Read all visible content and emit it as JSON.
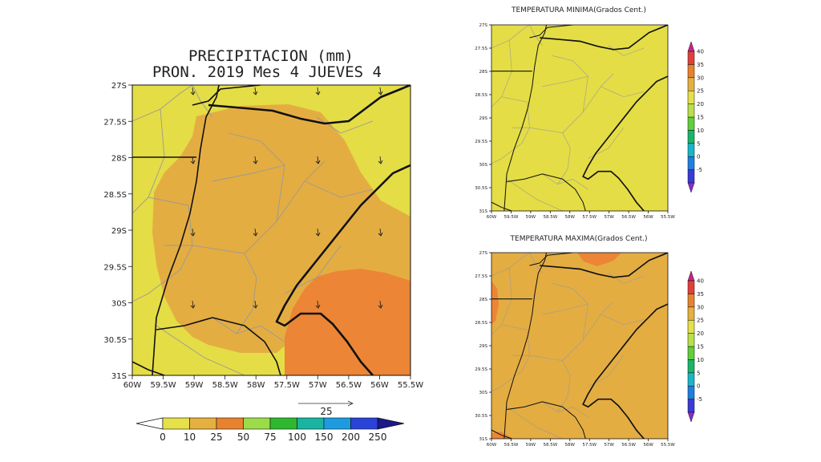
{
  "precip": {
    "title_line1": "PRECIPITACION (mm)",
    "title_line2": "PRON. 2019 Mes 4 JUEVES 4",
    "lat_ticks": [
      "27S",
      "27.5S",
      "28S",
      "28.5S",
      "29S",
      "29.5S",
      "30S",
      "30.5S",
      "31S"
    ],
    "lon_ticks": [
      "60W",
      "59.5W",
      "59W",
      "58.5W",
      "58W",
      "57.5W",
      "57W",
      "56.5W",
      "56W",
      "55.5W"
    ],
    "vector_ref_label": "25",
    "colorbar_labels": [
      "0",
      "10",
      "25",
      "50",
      "75",
      "100",
      "150",
      "200",
      "250"
    ],
    "colorbar_colors": [
      "#e6e04a",
      "#e6b040",
      "#e9822f",
      "#9ddc49",
      "#2fb82f",
      "#19b5a0",
      "#1e9be0",
      "#2a43d8"
    ],
    "fill_colors": {
      "low": "#e4dd45",
      "mid": "#e4ad42",
      "high": "#ec8535"
    }
  },
  "tmin": {
    "title": "TEMPERATURA MINIMA(Grados Cent.)",
    "lat_ticks": [
      "27S",
      "27.5S",
      "28S",
      "28.5S",
      "29S",
      "29.5S",
      "30S",
      "30.5S",
      "31S"
    ],
    "lon_ticks": [
      "60W",
      "59.5W",
      "59W",
      "58.5W",
      "58W",
      "57.5W",
      "57W",
      "56.5W",
      "56W",
      "55.5W"
    ],
    "fill_color": "#e4dd45"
  },
  "tmax": {
    "title": "TEMPERATURA MAXIMA(Grados Cent.)",
    "lat_ticks": [
      "27S",
      "27.5S",
      "28S",
      "28.5S",
      "29S",
      "29.5S",
      "30S",
      "30.5S",
      "31S"
    ],
    "lon_ticks": [
      "60W",
      "59.5W",
      "59W",
      "58.5W",
      "58W",
      "57.5W",
      "57W",
      "56.5W",
      "56W",
      "55.5W"
    ],
    "fill_color": "#e4ad42",
    "accent_color": "#ec8535"
  },
  "temp_colorbar": {
    "labels": [
      "-5",
      "0",
      "5",
      "10",
      "15",
      "20",
      "25",
      "30",
      "35",
      "40"
    ],
    "colors": [
      "#3a3ad8",
      "#1e7fe0",
      "#19b5c8",
      "#19b56a",
      "#5fcf3a",
      "#b8e04a",
      "#e6e04a",
      "#e6b040",
      "#e9822f",
      "#e0403a"
    ]
  }
}
